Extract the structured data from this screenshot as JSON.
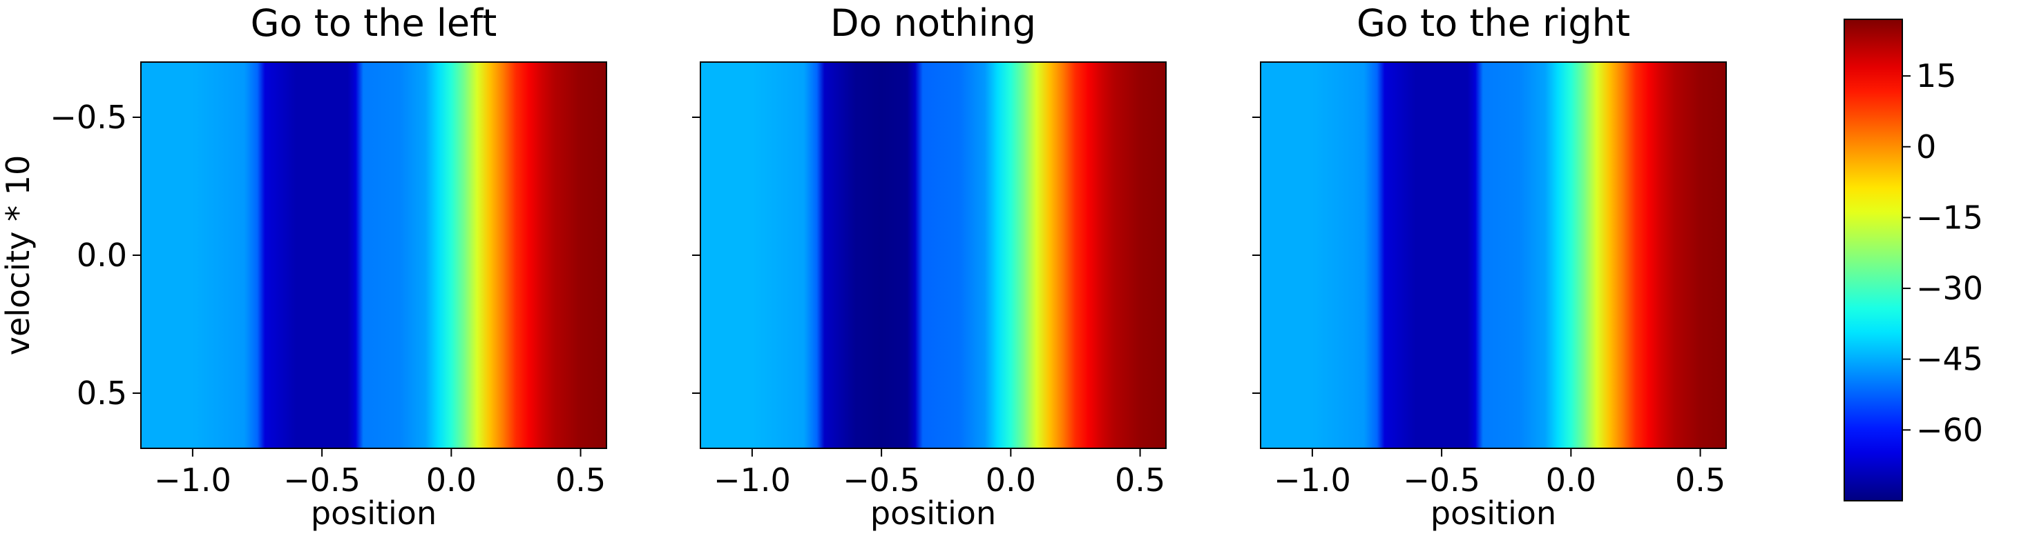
{
  "chart_data": {
    "type": "heatmap",
    "panels": [
      {
        "title": "Go to the left",
        "xlabel": "position",
        "ylabel": "velocity * 10",
        "xlim": [
          -1.2,
          0.6
        ],
        "ylim": [
          0.7,
          -0.7
        ],
        "xticks": [
          -1.0,
          -0.5,
          0.0,
          0.5
        ],
        "xtick_labels": [
          "−1.0",
          "−0.5",
          "0.0",
          "0.5"
        ],
        "yticks": [
          -0.5,
          0.0,
          0.5
        ],
        "ytick_labels": [
          "−0.5",
          "0.0",
          "0.5"
        ],
        "profile_x": [
          -1.2,
          -1.0,
          -0.8,
          -0.75,
          -0.72,
          -0.6,
          -0.5,
          -0.4,
          -0.37,
          -0.34,
          -0.2,
          -0.1,
          -0.05,
          0.0,
          0.05,
          0.1,
          0.15,
          0.2,
          0.25,
          0.3,
          0.35,
          0.4,
          0.5,
          0.6
        ],
        "profile_value": [
          -45,
          -45,
          -47,
          -52,
          -66,
          -70,
          -70,
          -70,
          -66,
          -50,
          -49,
          -46,
          -40,
          -33,
          -25,
          -15,
          -5,
          2,
          10,
          15,
          19,
          22,
          25,
          26
        ]
      },
      {
        "title": "Do nothing",
        "xlabel": "position",
        "xlim": [
          -1.2,
          0.6
        ],
        "ylim": [
          0.7,
          -0.7
        ],
        "xticks": [
          -1.0,
          -0.5,
          0.0,
          0.5
        ],
        "xtick_labels": [
          "−1.0",
          "−0.5",
          "0.0",
          "0.5"
        ],
        "yticks": [
          -0.5,
          0.0,
          0.5
        ],
        "ytick_labels": [],
        "profile_x": [
          -1.2,
          -1.0,
          -0.8,
          -0.75,
          -0.72,
          -0.6,
          -0.5,
          -0.4,
          -0.37,
          -0.34,
          -0.2,
          -0.1,
          -0.05,
          0.0,
          0.05,
          0.1,
          0.15,
          0.2,
          0.25,
          0.3,
          0.35,
          0.4,
          0.5,
          0.6
        ],
        "profile_value": [
          -44,
          -44,
          -46,
          -52,
          -68,
          -73,
          -74,
          -73,
          -68,
          -52,
          -51,
          -47,
          -40,
          -33,
          -25,
          -15,
          -5,
          2,
          10,
          15,
          19,
          22,
          25,
          26
        ]
      },
      {
        "title": "Go to the right",
        "xlabel": "position",
        "xlim": [
          -1.2,
          0.6
        ],
        "ylim": [
          0.7,
          -0.7
        ],
        "xticks": [
          -1.0,
          -0.5,
          0.0,
          0.5
        ],
        "xtick_labels": [
          "−1.0",
          "−0.5",
          "0.0",
          "0.5"
        ],
        "yticks": [
          -0.5,
          0.0,
          0.5
        ],
        "ytick_labels": [],
        "profile_x": [
          -1.2,
          -1.0,
          -0.8,
          -0.75,
          -0.72,
          -0.6,
          -0.5,
          -0.4,
          -0.37,
          -0.34,
          -0.2,
          -0.1,
          -0.05,
          0.0,
          0.05,
          0.1,
          0.15,
          0.2,
          0.25,
          0.3,
          0.35,
          0.4,
          0.5,
          0.6
        ],
        "profile_value": [
          -45,
          -45,
          -47,
          -52,
          -66,
          -70,
          -70,
          -70,
          -66,
          -50,
          -49,
          -46,
          -40,
          -33,
          -25,
          -15,
          -5,
          2,
          10,
          15,
          19,
          22,
          25,
          26
        ]
      }
    ],
    "colorbar": {
      "colormap": "jet",
      "vmin": -75,
      "vmax": 27,
      "ticks": [
        15,
        0,
        -15,
        -30,
        -45,
        -60
      ],
      "tick_labels": [
        "15",
        "0",
        "−15",
        "−30",
        "−45",
        "−60"
      ]
    },
    "grid": false
  }
}
